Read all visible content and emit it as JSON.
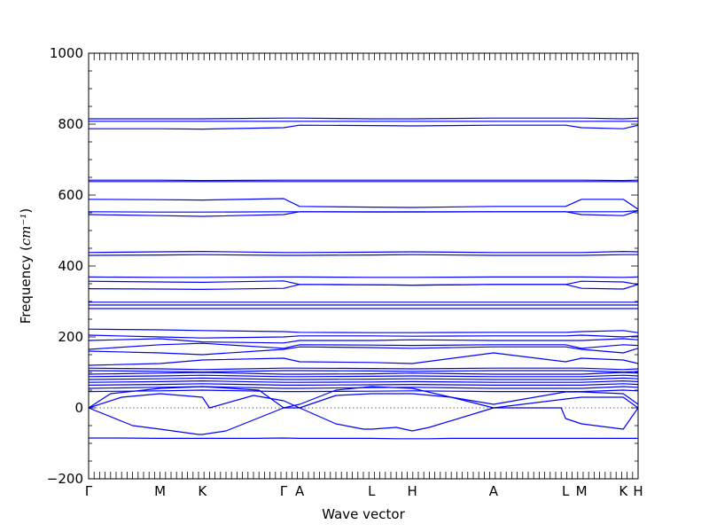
{
  "chart_data": {
    "type": "line",
    "title": "",
    "xlabel": "Wave vector",
    "ylabel": "Frequency",
    "ylabel_unit": "cm⁻¹",
    "ylim": [
      -200,
      1000
    ],
    "yticks": [
      -200,
      0,
      200,
      400,
      600,
      800,
      1000
    ],
    "ytick_labels": [
      "−200",
      "0",
      "200",
      "400",
      "600",
      "800",
      "1000"
    ],
    "grid": false,
    "line_color": "#0000ff",
    "zero_reference_line": true,
    "xlim": [
      0,
      1
    ],
    "high_symmetry_points": [
      {
        "label": "Γ",
        "x": 0.0
      },
      {
        "label": "M",
        "x": 0.13
      },
      {
        "label": "K",
        "x": 0.207
      },
      {
        "label": "Γ",
        "x": 0.355
      },
      {
        "label": "A",
        "x": 0.384
      },
      {
        "label": "L",
        "x": 0.515
      },
      {
        "label": "H",
        "x": 0.589
      },
      {
        "label": "A",
        "x": 0.737
      },
      {
        "label": "L",
        "x": 0.868
      },
      {
        "label": "M",
        "x": 0.897
      },
      {
        "label": "K",
        "x": 0.973
      },
      {
        "label": "H",
        "x": 1.0
      }
    ],
    "series": [
      {
        "x": [
          0,
          0.13,
          0.207,
          0.355,
          0.384,
          0.515,
          0.589,
          0.737,
          0.868,
          0.897,
          0.973,
          1.0
        ],
        "y": [
          815,
          815,
          815,
          817,
          817,
          815,
          815,
          817,
          817,
          817,
          815,
          817
        ]
      },
      {
        "x": [
          0,
          0.13,
          0.207,
          0.355,
          0.384,
          0.515,
          0.589,
          0.737,
          0.868,
          0.897,
          0.973,
          1.0
        ],
        "y": [
          808,
          808,
          808,
          808,
          808,
          808,
          808,
          808,
          808,
          808,
          808,
          808
        ]
      },
      {
        "x": [
          0,
          0.13,
          0.207,
          0.355,
          0.384,
          0.515,
          0.589,
          0.737,
          0.868,
          0.897,
          0.973,
          1.0
        ],
        "y": [
          787,
          787,
          786,
          790,
          797,
          796,
          795,
          797,
          797,
          790,
          787,
          797
        ]
      },
      {
        "x": [
          0,
          0.13,
          0.207,
          0.355,
          0.384,
          0.515,
          0.589,
          0.737,
          0.868,
          0.897,
          0.973,
          1.0
        ],
        "y": [
          642,
          642,
          641,
          642,
          642,
          642,
          642,
          642,
          642,
          642,
          641,
          642
        ]
      },
      {
        "x": [
          0,
          0.13,
          0.207,
          0.355,
          0.384,
          0.515,
          0.589,
          0.737,
          0.868,
          0.897,
          0.973,
          1.0
        ],
        "y": [
          638,
          638,
          638,
          638,
          638,
          638,
          638,
          638,
          638,
          638,
          638,
          638
        ]
      },
      {
        "x": [
          0,
          0.13,
          0.207,
          0.355,
          0.384,
          0.515,
          0.589,
          0.737,
          0.868,
          0.897,
          0.973,
          1.0
        ],
        "y": [
          588,
          587,
          586,
          590,
          568,
          566,
          565,
          568,
          568,
          588,
          588,
          560
        ]
      },
      {
        "x": [
          0,
          0.13,
          0.207,
          0.355,
          0.384,
          0.515,
          0.589,
          0.737,
          0.868,
          0.897,
          0.973,
          1.0
        ],
        "y": [
          553,
          552,
          552,
          553,
          553,
          553,
          553,
          553,
          553,
          553,
          553,
          556
        ]
      },
      {
        "x": [
          0,
          0.13,
          0.207,
          0.355,
          0.384,
          0.515,
          0.589,
          0.737,
          0.868,
          0.897,
          0.973,
          1.0
        ],
        "y": [
          545,
          542,
          540,
          545,
          553,
          552,
          552,
          553,
          553,
          545,
          542,
          556
        ]
      },
      {
        "x": [
          0,
          0.13,
          0.207,
          0.355,
          0.384,
          0.515,
          0.589,
          0.737,
          0.868,
          0.897,
          0.973,
          1.0
        ],
        "y": [
          438,
          440,
          441,
          438,
          438,
          439,
          440,
          438,
          438,
          438,
          441,
          440
        ]
      },
      {
        "x": [
          0,
          0.13,
          0.207,
          0.355,
          0.384,
          0.515,
          0.589,
          0.737,
          0.868,
          0.897,
          0.973,
          1.0
        ],
        "y": [
          430,
          431,
          432,
          430,
          430,
          431,
          432,
          430,
          430,
          430,
          432,
          432
        ]
      },
      {
        "x": [
          0,
          0.13,
          0.207,
          0.355,
          0.384,
          0.515,
          0.589,
          0.737,
          0.868,
          0.897,
          0.973,
          1.0
        ],
        "y": [
          369,
          368,
          368,
          369,
          369,
          368,
          368,
          369,
          369,
          369,
          368,
          369
        ]
      },
      {
        "x": [
          0,
          0.13,
          0.207,
          0.355,
          0.384,
          0.515,
          0.589,
          0.737,
          0.868,
          0.897,
          0.973,
          1.0
        ],
        "y": [
          357,
          355,
          354,
          358,
          348,
          347,
          346,
          348,
          348,
          357,
          355,
          348
        ]
      },
      {
        "x": [
          0,
          0.13,
          0.207,
          0.355,
          0.384,
          0.515,
          0.589,
          0.737,
          0.868,
          0.897,
          0.973,
          1.0
        ],
        "y": [
          336,
          335,
          334,
          337,
          348,
          347,
          346,
          348,
          348,
          337,
          335,
          348
        ]
      },
      {
        "x": [
          0,
          0.13,
          0.207,
          0.355,
          0.384,
          0.515,
          0.589,
          0.737,
          0.868,
          0.897,
          0.973,
          1.0
        ],
        "y": [
          298,
          298,
          298,
          298,
          298,
          298,
          298,
          298,
          298,
          298,
          298,
          298
        ]
      },
      {
        "x": [
          0,
          0.13,
          0.207,
          0.355,
          0.384,
          0.515,
          0.589,
          0.737,
          0.868,
          0.897,
          0.973,
          1.0
        ],
        "y": [
          290,
          290,
          290,
          290,
          290,
          290,
          290,
          290,
          290,
          290,
          290,
          290
        ]
      },
      {
        "x": [
          0,
          0.13,
          0.207,
          0.355,
          0.384,
          0.515,
          0.589,
          0.737,
          0.868,
          0.897,
          0.973,
          1.0
        ],
        "y": [
          280,
          280,
          280,
          280,
          280,
          280,
          280,
          280,
          280,
          280,
          280,
          280
        ]
      },
      {
        "x": [
          0,
          0.13,
          0.207,
          0.355,
          0.384,
          0.515,
          0.589,
          0.737,
          0.868,
          0.897,
          0.973,
          1.0
        ],
        "y": [
          222,
          220,
          218,
          215,
          213,
          212,
          212,
          213,
          213,
          215,
          218,
          212
        ]
      },
      {
        "x": [
          0,
          0.13,
          0.207,
          0.355,
          0.384,
          0.515,
          0.589,
          0.737,
          0.868,
          0.897,
          0.973,
          1.0
        ],
        "y": [
          205,
          200,
          197,
          200,
          203,
          203,
          202,
          203,
          203,
          205,
          200,
          203
        ]
      },
      {
        "x": [
          0,
          0.13,
          0.207,
          0.355,
          0.384,
          0.515,
          0.589,
          0.737,
          0.868,
          0.897,
          0.973,
          1.0
        ],
        "y": [
          190,
          195,
          186,
          183,
          190,
          190,
          192,
          190,
          190,
          190,
          195,
          192
        ]
      },
      {
        "x": [
          0,
          0.13,
          0.207,
          0.355,
          0.384,
          0.515,
          0.589,
          0.737,
          0.868,
          0.897,
          0.973,
          1.0
        ],
        "y": [
          165,
          178,
          182,
          168,
          178,
          177,
          176,
          178,
          178,
          168,
          178,
          176
        ]
      },
      {
        "x": [
          0,
          0.13,
          0.207,
          0.355,
          0.384,
          0.515,
          0.589,
          0.737,
          0.868,
          0.897,
          0.973,
          1.0
        ],
        "y": [
          160,
          155,
          150,
          165,
          172,
          170,
          168,
          172,
          172,
          165,
          155,
          168
        ]
      },
      {
        "x": [
          0,
          0.13,
          0.207,
          0.355,
          0.384,
          0.515,
          0.589,
          0.737,
          0.868,
          0.897,
          0.973,
          1.0
        ],
        "y": [
          120,
          125,
          135,
          140,
          130,
          128,
          125,
          155,
          130,
          140,
          135,
          125
        ]
      },
      {
        "x": [
          0,
          0.13,
          0.207,
          0.355,
          0.384,
          0.515,
          0.589,
          0.737,
          0.868,
          0.897,
          0.973,
          1.0
        ],
        "y": [
          112,
          110,
          108,
          112,
          112,
          111,
          110,
          112,
          112,
          112,
          108,
          110
        ]
      },
      {
        "x": [
          0,
          0.13,
          0.207,
          0.355,
          0.384,
          0.515,
          0.589,
          0.737,
          0.868,
          0.897,
          0.973,
          1.0
        ],
        "y": [
          105,
          103,
          101,
          105,
          105,
          104,
          103,
          105,
          105,
          105,
          101,
          103
        ]
      },
      {
        "x": [
          0,
          0.13,
          0.207,
          0.355,
          0.384,
          0.515,
          0.589,
          0.737,
          0.868,
          0.897,
          0.973,
          1.0
        ],
        "y": [
          95,
          98,
          100,
          95,
          95,
          96,
          98,
          95,
          95,
          95,
          100,
          98
        ]
      },
      {
        "x": [
          0,
          0.13,
          0.207,
          0.355,
          0.384,
          0.515,
          0.589,
          0.737,
          0.868,
          0.897,
          0.973,
          1.0
        ],
        "y": [
          88,
          90,
          92,
          88,
          88,
          89,
          90,
          88,
          88,
          88,
          92,
          90
        ]
      },
      {
        "x": [
          0,
          0.13,
          0.207,
          0.355,
          0.384,
          0.515,
          0.589,
          0.737,
          0.868,
          0.897,
          0.973,
          1.0
        ],
        "y": [
          80,
          82,
          84,
          80,
          80,
          81,
          82,
          80,
          80,
          80,
          84,
          82
        ]
      },
      {
        "x": [
          0,
          0.13,
          0.207,
          0.355,
          0.384,
          0.515,
          0.589,
          0.737,
          0.868,
          0.897,
          0.973,
          1.0
        ],
        "y": [
          72,
          74,
          76,
          72,
          72,
          73,
          74,
          72,
          72,
          72,
          76,
          74
        ]
      },
      {
        "x": [
          0,
          0.13,
          0.207,
          0.355,
          0.384,
          0.515,
          0.589,
          0.737,
          0.868,
          0.897,
          0.973,
          1.0
        ],
        "y": [
          64,
          66,
          68,
          64,
          64,
          65,
          66,
          64,
          64,
          64,
          68,
          66
        ]
      },
      {
        "x": [
          0,
          0.04,
          0.13,
          0.207,
          0.31,
          0.355,
          0.384,
          0.45,
          0.515,
          0.589,
          0.66,
          0.737,
          0.868,
          0.897,
          0.973,
          1.0
        ],
        "y": [
          0,
          40,
          55,
          60,
          50,
          0,
          10,
          50,
          60,
          55,
          30,
          10,
          45,
          45,
          40,
          10
        ]
      },
      {
        "x": [
          0,
          0.06,
          0.13,
          0.207,
          0.22,
          0.3,
          0.355,
          0.384,
          0.45,
          0.515,
          0.589,
          0.66,
          0.737,
          0.868,
          0.897,
          0.973,
          1.0
        ],
        "y": [
          0,
          30,
          40,
          30,
          0,
          35,
          20,
          0,
          35,
          40,
          40,
          30,
          0,
          25,
          30,
          30,
          0
        ]
      },
      {
        "x": [
          0,
          0.08,
          0.13,
          0.2,
          0.207,
          0.25,
          0.355,
          0.384,
          0.45,
          0.5,
          0.515,
          0.56,
          0.589,
          0.62,
          0.737,
          0.86,
          0.868,
          0.897,
          0.973,
          1.0
        ],
        "y": [
          0,
          -50,
          -60,
          -75,
          -75,
          -65,
          0,
          0,
          -45,
          -60,
          -60,
          -55,
          -65,
          -55,
          0,
          0,
          -30,
          -45,
          -60,
          0
        ]
      },
      {
        "x": [
          0,
          0.05,
          0.13,
          0.207,
          0.3,
          0.355,
          0.384,
          0.45,
          0.515,
          0.56,
          0.589,
          0.62,
          0.66,
          0.737,
          0.868,
          0.897,
          0.973,
          1.0
        ],
        "y": [
          -85,
          -85,
          -86,
          -86,
          -86,
          -85,
          -86,
          -86,
          -86,
          -87,
          -87,
          -87,
          -86,
          -86,
          -86,
          -86,
          -86,
          -86
        ]
      },
      {
        "x": [
          0,
          0.13,
          0.207,
          0.355,
          0.384,
          0.515,
          0.589,
          0.737,
          0.868,
          0.897,
          0.973,
          1.0
        ],
        "y": [
          55,
          58,
          60,
          55,
          55,
          57,
          58,
          55,
          55,
          55,
          60,
          58
        ]
      },
      {
        "x": [
          0,
          0.13,
          0.207,
          0.355,
          0.384,
          0.515,
          0.589,
          0.737,
          0.868,
          0.897,
          0.973,
          1.0
        ],
        "y": [
          46,
          48,
          50,
          46,
          46,
          47,
          48,
          46,
          46,
          46,
          50,
          48
        ]
      }
    ]
  }
}
